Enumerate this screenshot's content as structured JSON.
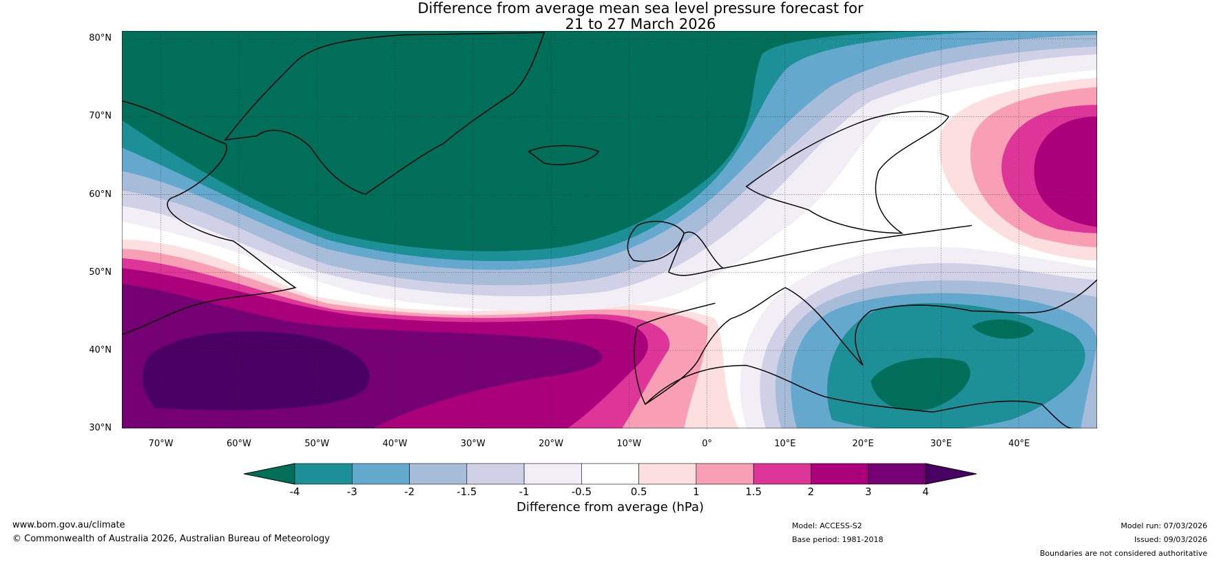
{
  "title": {
    "line1": "Difference from average mean sea level pressure forecast for",
    "line2": "21 to 27 March 2026"
  },
  "map": {
    "lat_labels": [
      "80°N",
      "70°N",
      "60°N",
      "50°N",
      "40°N",
      "30°N"
    ],
    "lat_values": [
      80,
      70,
      60,
      50,
      40,
      30
    ],
    "lon_labels": [
      "70°W",
      "60°W",
      "50°W",
      "40°W",
      "30°W",
      "20°W",
      "10°W",
      "0°",
      "10°E",
      "20°E",
      "30°E",
      "40°E"
    ],
    "lon_values": [
      -70,
      -60,
      -50,
      -40,
      -30,
      -20,
      -10,
      0,
      10,
      20,
      30,
      40
    ],
    "extent": {
      "lon": [
        -75,
        50
      ],
      "lat": [
        30,
        81
      ]
    }
  },
  "colorbar": {
    "ticks": [
      "-4",
      "-3",
      "-2",
      "-1.5",
      "-1",
      "-0.5",
      "0.5",
      "1",
      "1.5",
      "2",
      "3",
      "4"
    ],
    "under_color": "#006e58",
    "over_color": "#4a0062",
    "colors": [
      "#1c8f97",
      "#64a8cd",
      "#a7bcd9",
      "#d0d1e6",
      "#f2eef5",
      "#ffffff",
      "#fddfe0",
      "#f89fb6",
      "#dd3598",
      "#ab007b",
      "#740074"
    ],
    "label": "Difference from average (hPa)"
  },
  "footer": {
    "url": "www.bom.gov.au/climate",
    "copyright": "© Commonwealth of Australia 2026, Australian Bureau of Meteorology",
    "model": "Model: ACCESS-S2",
    "base_period": "Base period: 1981-2018",
    "model_run": "Model run: 07/03/2026",
    "issued": "Issued: 09/03/2026",
    "disclaimer": "Boundaries are not considered authoritative"
  }
}
